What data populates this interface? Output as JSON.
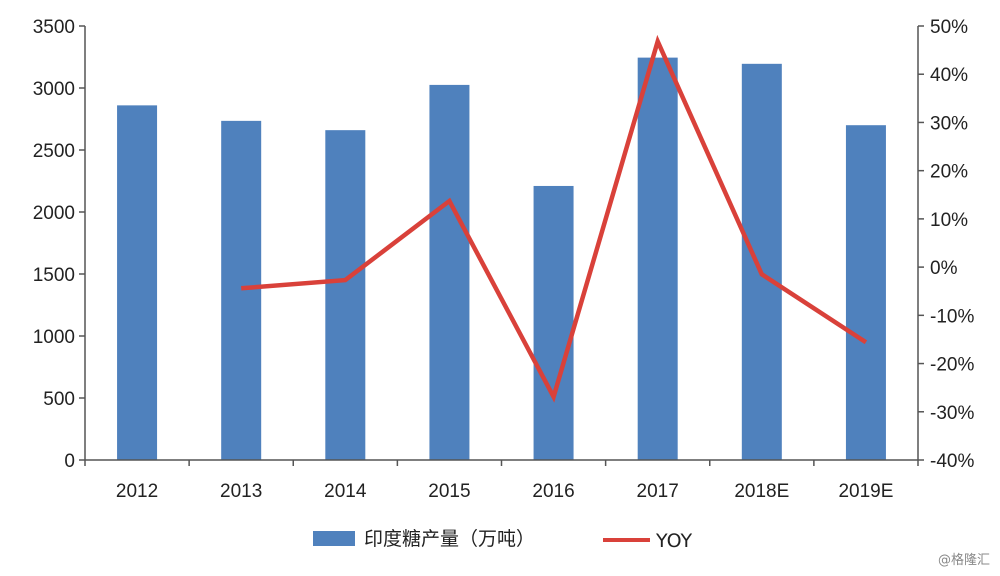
{
  "chart_data": {
    "type": "bar",
    "categories": [
      "2012",
      "2013",
      "2014",
      "2015",
      "2016",
      "2017",
      "2018E",
      "2019E"
    ],
    "series": [
      {
        "name": "印度糖产量（万吨）",
        "type": "bar",
        "axis": "left",
        "color": "#4f81bd",
        "values": [
          2860,
          2735,
          2660,
          3025,
          2210,
          3245,
          3195,
          2700
        ]
      },
      {
        "name": "YOY",
        "type": "line",
        "axis": "right",
        "color": "#d9413a",
        "values": [
          null,
          -4.4,
          -2.7,
          13.7,
          -26.9,
          46.8,
          -1.5,
          -15.6
        ]
      }
    ],
    "ylim_left": [
      0,
      3500
    ],
    "yticks_left": [
      "0",
      "500",
      "1000",
      "1500",
      "2000",
      "2500",
      "3000",
      "3500"
    ],
    "ylim_right": [
      -40,
      50
    ],
    "yticks_right": [
      "-40%",
      "-30%",
      "-20%",
      "-10%",
      "0%",
      "10%",
      "20%",
      "30%",
      "40%",
      "50%"
    ],
    "legend_position": "bottom",
    "grid": false
  },
  "watermark": "@格隆汇"
}
